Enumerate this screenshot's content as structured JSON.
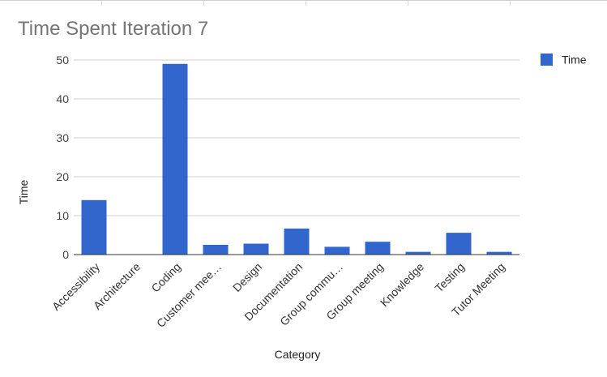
{
  "chart_data": {
    "type": "bar",
    "title": "Time Spent Iteration 7",
    "xlabel": "Category",
    "ylabel": "Time",
    "ylim": [
      0,
      50
    ],
    "yticks": [
      0,
      10,
      20,
      30,
      40,
      50
    ],
    "grid": true,
    "legend_position": "right",
    "categories": [
      "Accessibility",
      "Architecture",
      "Coding",
      "Customer mee…",
      "Design",
      "Documentation",
      "Group commu…",
      "Group meeting",
      "Knowledge",
      "Testing",
      "Tutor Meeting"
    ],
    "series": [
      {
        "name": "Time",
        "color": "#3366cc",
        "values": [
          14,
          0,
          49,
          2.5,
          2.8,
          6.7,
          2,
          3.3,
          0.7,
          5.6,
          0.7
        ]
      }
    ]
  }
}
